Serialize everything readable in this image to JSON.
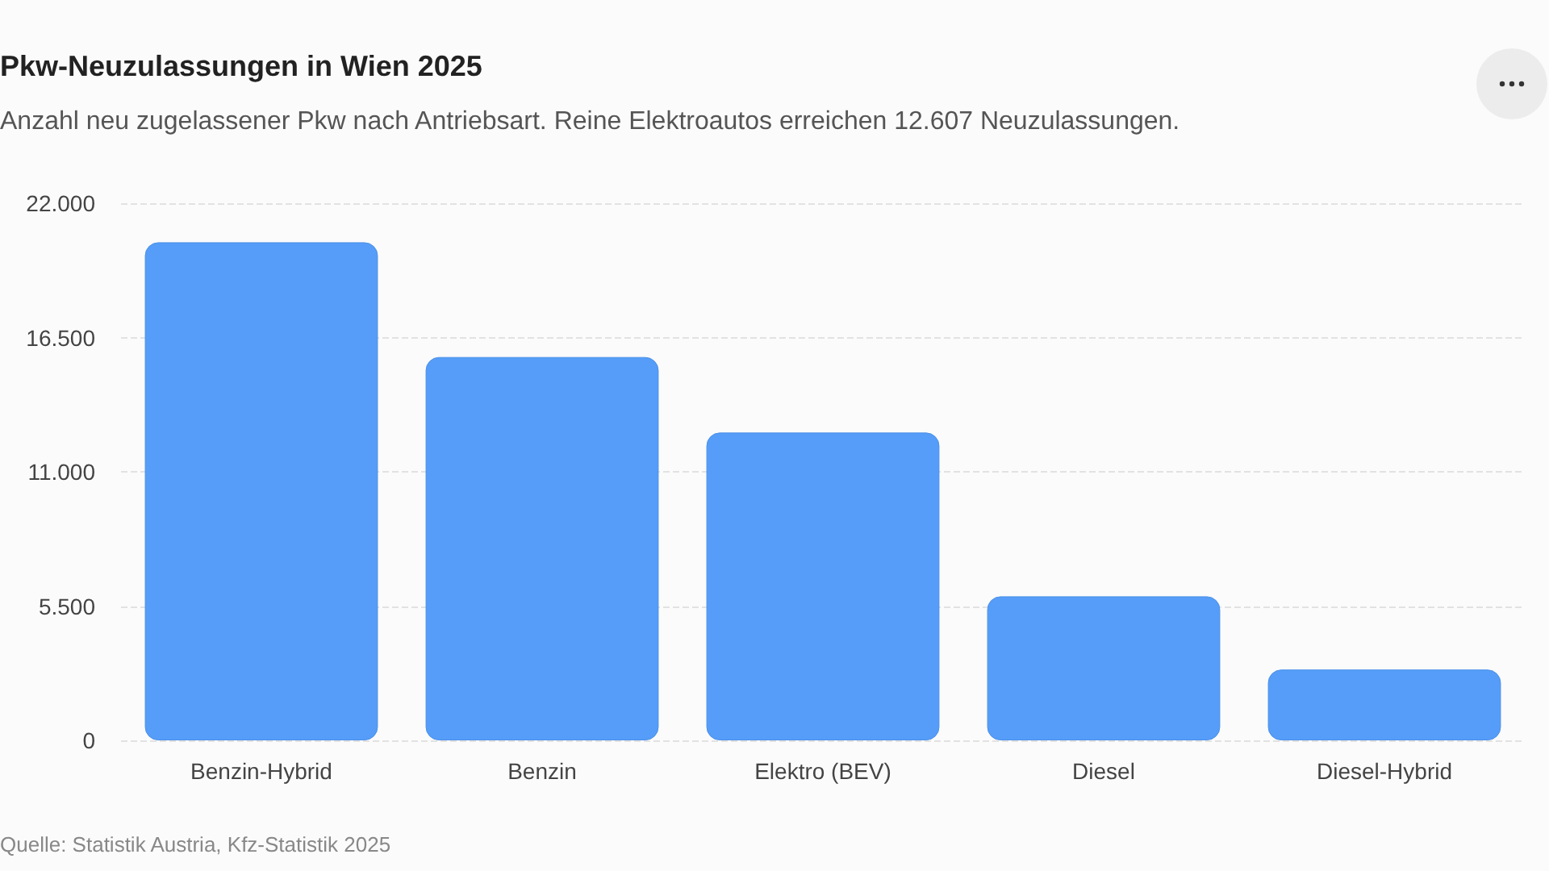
{
  "chart_data": {
    "type": "bar",
    "title": "Pkw-Neuzulassungen in Wien 2025",
    "subtitle": "Anzahl neu zugelassener Pkw nach Antriebsart. Reine Elektroautos erreichen 12.607 Neuzulassungen.",
    "categories": [
      "Benzin-Hybrid",
      "Benzin",
      "Elektro (BEV)",
      "Diesel",
      "Diesel-Hybrid"
    ],
    "values": [
      20400,
      15700,
      12607,
      5900,
      2900
    ],
    "color": "#559df8",
    "ylim": [
      0,
      22000
    ],
    "yticks": [
      {
        "value": 0,
        "label": "0"
      },
      {
        "value": 5500,
        "label": "5.500"
      },
      {
        "value": 11000,
        "label": "11.000"
      },
      {
        "value": 16500,
        "label": "16.500"
      },
      {
        "value": 22000,
        "label": "22.000"
      }
    ],
    "grid": "y",
    "annotations": [
      "Quelle: Statistik Austria, Kfz-Statistik 2025"
    ]
  }
}
